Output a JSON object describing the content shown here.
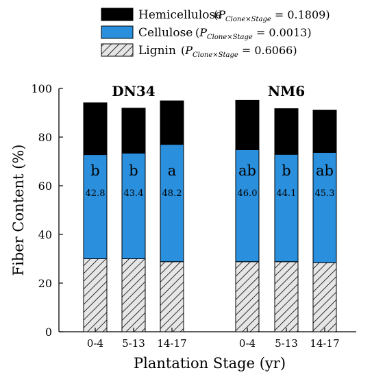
{
  "chart_data": {
    "type": "bar",
    "stacked": true,
    "ylabel": "Fiber Content (%)",
    "xlabel": "Plantation Stage (yr)",
    "ylim": [
      0,
      100
    ],
    "yticks": [
      0,
      20,
      40,
      60,
      80,
      100
    ],
    "groups": [
      {
        "name": "DN34",
        "categories": [
          "0-4",
          "5-13",
          "14-17"
        ],
        "lignin": [
          30.0,
          30.0,
          28.8
        ],
        "cellulose": [
          42.8,
          43.4,
          48.2
        ],
        "hemicellulose": [
          21.3,
          18.5,
          17.9
        ],
        "letters": [
          "b",
          "b",
          "a"
        ],
        "value_labels": [
          "42.8",
          "43.4",
          "48.2"
        ]
      },
      {
        "name": "NM6",
        "categories": [
          "0-4",
          "5-13",
          "14-17"
        ],
        "lignin": [
          28.8,
          28.8,
          28.4
        ],
        "cellulose": [
          46.0,
          44.1,
          45.3
        ],
        "hemicellulose": [
          20.3,
          18.8,
          17.4
        ],
        "letters": [
          "ab",
          "b",
          "ab"
        ],
        "value_labels": [
          "46.0",
          "44.1",
          "45.3"
        ]
      }
    ],
    "legend": [
      {
        "key": "hemicellulose",
        "name": "Hemicellulose",
        "stat": "0.1809",
        "fill": "solid",
        "color": "#000000"
      },
      {
        "key": "cellulose",
        "name": "Cellulose",
        "stat": "0.0013",
        "fill": "solid",
        "color": "#2a8fdc"
      },
      {
        "key": "lignin",
        "name": "Lignin",
        "stat": "0.6066",
        "fill": "hatch",
        "color": "#e6e6e6"
      }
    ],
    "legend_stat_symbol": "P",
    "legend_stat_subscript": "Clone×Stage",
    "legend_position": "top-center",
    "grid": false
  }
}
